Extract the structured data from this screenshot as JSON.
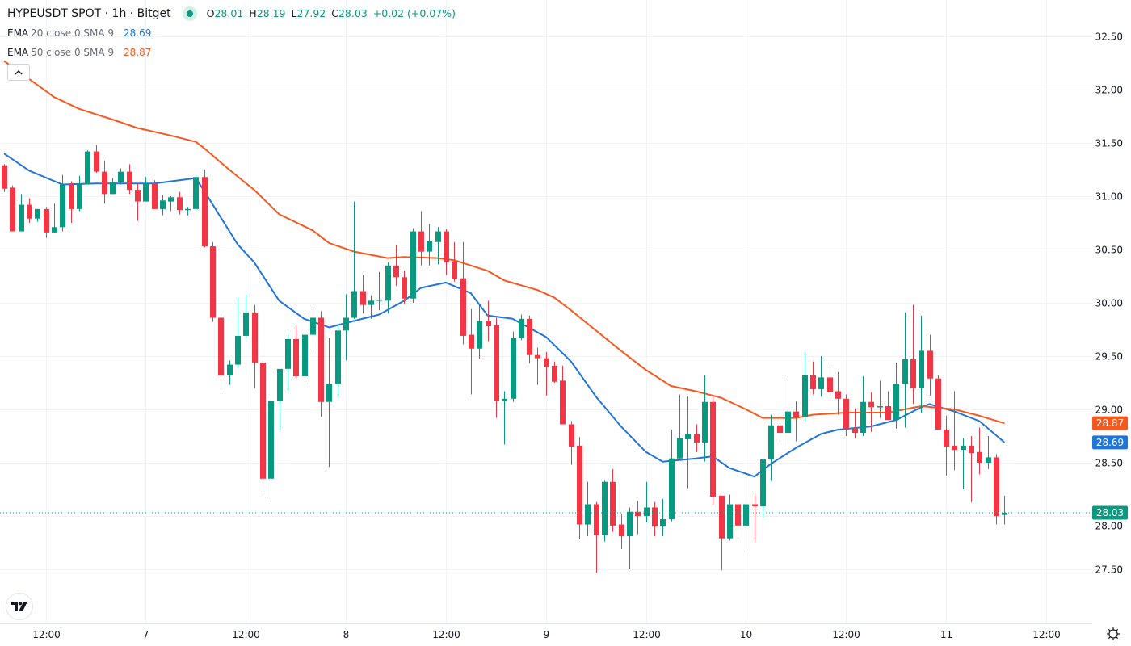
{
  "header": {
    "symbol": "HYPEUSDT SPOT · 1h · Bitget",
    "status_icon": "market-open-dot-icon",
    "open_label": "O",
    "open": "28.01",
    "high_label": "H",
    "high": "28.19",
    "low_label": "L",
    "low": "27.92",
    "close_label": "C",
    "close": "28.03",
    "change": "+0.02 (+0.07%)"
  },
  "indicators": [
    {
      "name": "EMA",
      "args": "20 close 0 SMA 9",
      "value": "28.69",
      "color": "#2175D9"
    },
    {
      "name": "EMA",
      "args": "50 close 0 SMA 9",
      "value": "28.87",
      "color": "#F7581F"
    }
  ],
  "collapse_icon": "chevron-up-icon",
  "logo_text": "TV",
  "settings_icon": "gear-icon",
  "chart_data": {
    "type": "candlestick",
    "interval": "1h",
    "colors": {
      "up": "#089981",
      "down": "#F23645",
      "grid": "#F0F3FA"
    },
    "y_range": [
      27.2,
      32.85
    ],
    "price_ticks": [
      "32.50",
      "32.00",
      "31.50",
      "31.00",
      "30.50",
      "30.00",
      "29.50",
      "29.00",
      "28.50",
      "28.00",
      "27.50"
    ],
    "time_ticks": [
      {
        "t": "6 12:00",
        "label": "12:00"
      },
      {
        "t": "7 00:00",
        "label": "7"
      },
      {
        "t": "7 12:00",
        "label": "12:00"
      },
      {
        "t": "8 00:00",
        "label": "8"
      },
      {
        "t": "8 12:00",
        "label": "12:00"
      },
      {
        "t": "9 00:00",
        "label": "9"
      },
      {
        "t": "9 12:00",
        "label": "12:00"
      },
      {
        "t": "10 00:00",
        "label": "10"
      },
      {
        "t": "10 12:00",
        "label": "12:00"
      },
      {
        "t": "11 00:00",
        "label": "11"
      },
      {
        "t": "11 12:00",
        "label": "12:00"
      }
    ],
    "last_price": "28.03",
    "candles_fields": [
      "time",
      "open",
      "high",
      "low",
      "close"
    ],
    "candles": [
      [
        "6 07:00",
        31.29,
        31.3,
        31.04,
        31.07
      ],
      [
        "6 08:00",
        31.08,
        31.1,
        30.67,
        30.67
      ],
      [
        "6 09:00",
        30.67,
        31.02,
        30.67,
        30.92
      ],
      [
        "6 10:00",
        30.92,
        30.98,
        30.75,
        30.79
      ],
      [
        "6 11:00",
        30.79,
        30.88,
        30.76,
        30.88
      ],
      [
        "6 12:00",
        30.88,
        30.9,
        30.61,
        30.66
      ],
      [
        "6 13:00",
        30.66,
        30.93,
        30.66,
        30.71
      ],
      [
        "6 14:00",
        30.71,
        31.2,
        30.67,
        31.11
      ],
      [
        "6 15:00",
        31.11,
        31.14,
        30.75,
        30.88
      ],
      [
        "6 16:00",
        30.88,
        31.19,
        30.86,
        31.11
      ],
      [
        "6 17:00",
        31.11,
        31.43,
        31.11,
        31.42
      ],
      [
        "6 18:00",
        31.42,
        31.48,
        31.22,
        31.23
      ],
      [
        "6 19:00",
        31.23,
        31.33,
        30.93,
        31.02
      ],
      [
        "6 20:00",
        31.02,
        31.17,
        31.02,
        31.13
      ],
      [
        "6 21:00",
        31.13,
        31.26,
        31.11,
        31.23
      ],
      [
        "6 22:00",
        31.23,
        31.3,
        31.02,
        31.06
      ],
      [
        "6 23:00",
        31.06,
        31.12,
        30.77,
        30.95
      ],
      [
        "7 00:00",
        30.95,
        31.18,
        30.95,
        31.12
      ],
      [
        "7 01:00",
        31.12,
        31.15,
        30.88,
        30.88
      ],
      [
        "7 02:00",
        30.88,
        31.01,
        30.82,
        30.96
      ],
      [
        "7 03:00",
        30.95,
        31.0,
        30.86,
        30.99
      ],
      [
        "7 04:00",
        30.99,
        31.04,
        30.83,
        30.87
      ],
      [
        "7 05:00",
        30.87,
        30.9,
        30.82,
        30.88
      ],
      [
        "7 06:00",
        30.88,
        31.2,
        30.87,
        31.18
      ],
      [
        "7 07:00",
        31.18,
        31.25,
        30.52,
        30.53
      ],
      [
        "7 08:00",
        30.53,
        30.57,
        29.82,
        29.86
      ],
      [
        "7 09:00",
        29.86,
        29.92,
        29.19,
        29.32
      ],
      [
        "7 10:00",
        29.32,
        29.46,
        29.23,
        29.42
      ],
      [
        "7 11:00",
        29.42,
        30.05,
        29.39,
        29.69
      ],
      [
        "7 12:00",
        29.69,
        30.08,
        29.67,
        29.91
      ],
      [
        "7 13:00",
        29.91,
        29.98,
        29.2,
        29.44
      ],
      [
        "7 14:00",
        29.44,
        29.48,
        28.23,
        28.35
      ],
      [
        "7 15:00",
        28.35,
        29.14,
        28.16,
        29.08
      ],
      [
        "7 16:00",
        29.08,
        29.38,
        28.81,
        29.38
      ],
      [
        "7 17:00",
        29.38,
        29.7,
        29.18,
        29.66
      ],
      [
        "7 18:00",
        29.66,
        29.79,
        29.29,
        29.31
      ],
      [
        "7 19:00",
        29.31,
        29.88,
        29.23,
        29.7
      ],
      [
        "7 20:00",
        29.7,
        29.94,
        29.52,
        29.86
      ],
      [
        "7 21:00",
        29.86,
        29.92,
        28.93,
        29.07
      ],
      [
        "7 22:00",
        29.07,
        29.67,
        28.46,
        29.24
      ],
      [
        "7 23:00",
        29.24,
        29.79,
        29.11,
        29.74
      ],
      [
        "8 00:00",
        29.74,
        30.08,
        29.46,
        29.86
      ],
      [
        "8 01:00",
        29.86,
        30.95,
        29.85,
        30.11
      ],
      [
        "8 02:00",
        30.11,
        30.26,
        29.9,
        29.98
      ],
      [
        "8 03:00",
        29.98,
        30.07,
        29.85,
        30.02
      ],
      [
        "8 04:00",
        30.02,
        30.29,
        29.93,
        30.03
      ],
      [
        "8 05:00",
        30.02,
        30.38,
        29.9,
        30.35
      ],
      [
        "8 06:00",
        30.35,
        30.54,
        30.16,
        30.24
      ],
      [
        "8 07:00",
        30.24,
        30.3,
        29.99,
        30.04
      ],
      [
        "8 08:00",
        30.04,
        30.7,
        30.0,
        30.67
      ],
      [
        "8 09:00",
        30.67,
        30.86,
        30.35,
        30.48
      ],
      [
        "8 10:00",
        30.48,
        30.74,
        30.35,
        30.58
      ],
      [
        "8 11:00",
        30.57,
        30.71,
        30.36,
        30.67
      ],
      [
        "8 12:00",
        30.67,
        30.69,
        30.26,
        30.38
      ],
      [
        "8 13:00",
        30.39,
        30.57,
        30.2,
        30.22
      ],
      [
        "8 14:00",
        30.23,
        30.57,
        29.61,
        29.69
      ],
      [
        "8 15:00",
        29.7,
        29.94,
        29.14,
        29.57
      ],
      [
        "8 16:00",
        29.57,
        29.99,
        29.47,
        29.83
      ],
      [
        "8 17:00",
        29.83,
        30.02,
        29.64,
        29.78
      ],
      [
        "8 18:00",
        29.79,
        29.86,
        28.92,
        29.08
      ],
      [
        "8 19:00",
        29.08,
        29.17,
        28.67,
        29.1
      ],
      [
        "8 20:00",
        29.1,
        29.73,
        29.07,
        29.67
      ],
      [
        "8 21:00",
        29.67,
        29.89,
        29.65,
        29.85
      ],
      [
        "8 22:00",
        29.85,
        29.88,
        29.43,
        29.51
      ],
      [
        "8 23:00",
        29.51,
        29.58,
        29.23,
        29.48
      ],
      [
        "9 00:00",
        29.48,
        29.54,
        29.13,
        29.4
      ],
      [
        "9 01:00",
        29.41,
        29.45,
        29.25,
        29.26
      ],
      [
        "9 02:00",
        29.27,
        29.41,
        28.86,
        28.86
      ],
      [
        "9 03:00",
        28.86,
        28.89,
        28.48,
        28.65
      ],
      [
        "9 04:00",
        28.66,
        28.74,
        27.78,
        27.92
      ],
      [
        "9 05:00",
        27.92,
        28.32,
        27.81,
        28.11
      ],
      [
        "9 06:00",
        28.11,
        28.13,
        27.47,
        27.82
      ],
      [
        "9 07:00",
        27.82,
        28.33,
        27.76,
        28.32
      ],
      [
        "9 08:00",
        28.32,
        28.44,
        27.85,
        27.91
      ],
      [
        "9 09:00",
        27.92,
        28.02,
        27.69,
        27.81
      ],
      [
        "9 10:00",
        27.81,
        28.08,
        27.5,
        28.04
      ],
      [
        "9 11:00",
        28.04,
        28.14,
        27.83,
        28.0
      ],
      [
        "9 12:00",
        28.0,
        28.32,
        27.94,
        28.08
      ],
      [
        "9 13:00",
        28.08,
        28.13,
        27.81,
        27.9
      ],
      [
        "9 14:00",
        27.9,
        28.16,
        27.81,
        27.97
      ],
      [
        "9 15:00",
        27.97,
        28.81,
        27.95,
        28.54
      ],
      [
        "9 16:00",
        28.54,
        29.14,
        28.52,
        28.73
      ],
      [
        "9 17:00",
        28.72,
        29.12,
        28.26,
        28.77
      ],
      [
        "9 18:00",
        28.77,
        28.86,
        28.6,
        28.69
      ],
      [
        "9 19:00",
        28.69,
        29.32,
        28.51,
        29.07
      ],
      [
        "9 20:00",
        29.07,
        29.13,
        28.11,
        28.18
      ],
      [
        "9 21:00",
        28.19,
        28.19,
        27.49,
        27.79
      ],
      [
        "9 22:00",
        27.79,
        28.2,
        27.77,
        28.11
      ],
      [
        "9 23:00",
        28.11,
        28.11,
        27.76,
        27.91
      ],
      [
        "10 00:00",
        27.91,
        28.38,
        27.64,
        28.11
      ],
      [
        "10 01:00",
        28.11,
        28.21,
        27.76,
        28.09
      ],
      [
        "10 02:00",
        28.09,
        28.54,
        27.99,
        28.53
      ],
      [
        "10 03:00",
        28.53,
        28.95,
        28.33,
        28.85
      ],
      [
        "10 04:00",
        28.85,
        28.91,
        28.67,
        28.78
      ],
      [
        "10 05:00",
        28.78,
        29.31,
        28.66,
        28.98
      ],
      [
        "10 06:00",
        28.98,
        29.08,
        28.7,
        28.93
      ],
      [
        "10 07:00",
        28.93,
        29.54,
        28.89,
        29.32
      ],
      [
        "10 08:00",
        29.32,
        29.45,
        29.14,
        29.19
      ],
      [
        "10 09:00",
        29.19,
        29.5,
        29.12,
        29.3
      ],
      [
        "10 10:00",
        29.3,
        29.42,
        29.13,
        29.16
      ],
      [
        "10 11:00",
        29.17,
        29.35,
        28.95,
        29.1
      ],
      [
        "10 12:00",
        29.1,
        29.14,
        28.75,
        28.82
      ],
      [
        "10 13:00",
        28.82,
        29.01,
        28.73,
        28.78
      ],
      [
        "10 14:00",
        28.78,
        29.31,
        28.75,
        29.07
      ],
      [
        "10 15:00",
        29.07,
        29.16,
        28.79,
        29.02
      ],
      [
        "10 16:00",
        29.02,
        29.27,
        28.92,
        29.03
      ],
      [
        "10 17:00",
        29.03,
        29.17,
        28.9,
        28.9
      ],
      [
        "10 18:00",
        28.9,
        29.44,
        28.82,
        29.24
      ],
      [
        "10 19:00",
        29.24,
        29.91,
        28.83,
        29.47
      ],
      [
        "10 20:00",
        29.47,
        29.98,
        29.05,
        29.2
      ],
      [
        "10 21:00",
        29.2,
        29.88,
        28.97,
        29.55
      ],
      [
        "10 22:00",
        29.55,
        29.7,
        29.13,
        29.29
      ],
      [
        "10 23:00",
        29.29,
        29.32,
        28.81,
        28.81
      ],
      [
        "11 00:00",
        28.81,
        28.94,
        28.38,
        28.65
      ],
      [
        "11 01:00",
        28.66,
        29.17,
        28.43,
        28.62
      ],
      [
        "11 02:00",
        28.62,
        28.73,
        28.25,
        28.66
      ],
      [
        "11 03:00",
        28.66,
        28.75,
        28.13,
        28.59
      ],
      [
        "11 04:00",
        28.6,
        28.83,
        28.39,
        28.5
      ],
      [
        "11 05:00",
        28.5,
        28.75,
        28.44,
        28.55
      ],
      [
        "11 06:00",
        28.55,
        28.58,
        27.92,
        28.0
      ],
      [
        "11 07:00",
        28.01,
        28.19,
        27.92,
        28.03
      ]
    ],
    "series": [
      {
        "name": "EMA 20",
        "color": "#2175D9",
        "points": [
          [
            "6 07:00",
            31.4
          ],
          [
            "6 10:00",
            31.24
          ],
          [
            "6 14:00",
            31.11
          ],
          [
            "6 18:00",
            31.12
          ],
          [
            "7 01:00",
            31.12
          ],
          [
            "7 06:00",
            31.17
          ],
          [
            "7 07:00",
            31.05
          ],
          [
            "7 11:00",
            30.55
          ],
          [
            "7 13:00",
            30.38
          ],
          [
            "7 16:00",
            30.02
          ],
          [
            "7 19:00",
            29.85
          ],
          [
            "7 22:00",
            29.77
          ],
          [
            "8 01:00",
            29.83
          ],
          [
            "8 04:00",
            29.89
          ],
          [
            "8 07:00",
            30.02
          ],
          [
            "8 09:00",
            30.14
          ],
          [
            "8 12:00",
            30.19
          ],
          [
            "8 15:00",
            30.09
          ],
          [
            "8 17:00",
            29.88
          ],
          [
            "8 20:00",
            29.85
          ],
          [
            "9 00:00",
            29.68
          ],
          [
            "9 03:00",
            29.45
          ],
          [
            "9 06:00",
            29.12
          ],
          [
            "9 09:00",
            28.84
          ],
          [
            "9 12:00",
            28.6
          ],
          [
            "9 14:00",
            28.51
          ],
          [
            "9 18:00",
            28.54
          ],
          [
            "9 20:00",
            28.56
          ],
          [
            "9 22:00",
            28.45
          ],
          [
            "10 01:00",
            28.37
          ],
          [
            "10 03:00",
            28.49
          ],
          [
            "10 06:00",
            28.64
          ],
          [
            "10 09:00",
            28.77
          ],
          [
            "10 11:00",
            28.81
          ],
          [
            "10 15:00",
            28.84
          ],
          [
            "10 18:00",
            28.9
          ],
          [
            "10 21:00",
            29.02
          ],
          [
            "10 22:00",
            29.05
          ],
          [
            "11 01:00",
            28.98
          ],
          [
            "11 04:00",
            28.89
          ],
          [
            "11 07:00",
            28.69
          ]
        ]
      },
      {
        "name": "EMA 50",
        "color": "#F7581F",
        "points": [
          [
            "6 07:00",
            32.27
          ],
          [
            "6 10:00",
            32.1
          ],
          [
            "6 13:00",
            31.93
          ],
          [
            "6 16:00",
            31.82
          ],
          [
            "6 20:00",
            31.72
          ],
          [
            "6 23:00",
            31.64
          ],
          [
            "7 03:00",
            31.57
          ],
          [
            "7 06:00",
            31.51
          ],
          [
            "7 07:00",
            31.45
          ],
          [
            "7 10:00",
            31.25
          ],
          [
            "7 13:00",
            31.06
          ],
          [
            "7 16:00",
            30.83
          ],
          [
            "7 20:00",
            30.68
          ],
          [
            "7 22:00",
            30.56
          ],
          [
            "8 01:00",
            30.48
          ],
          [
            "8 05:00",
            30.42
          ],
          [
            "8 07:00",
            30.43
          ],
          [
            "8 11:00",
            30.42
          ],
          [
            "8 13:00",
            30.4
          ],
          [
            "8 17:00",
            30.3
          ],
          [
            "8 19:00",
            30.21
          ],
          [
            "8 23:00",
            30.12
          ],
          [
            "9 01:00",
            30.05
          ],
          [
            "9 03:00",
            29.93
          ],
          [
            "9 06:00",
            29.74
          ],
          [
            "9 09:00",
            29.55
          ],
          [
            "9 12:00",
            29.37
          ],
          [
            "9 15:00",
            29.22
          ],
          [
            "9 18:00",
            29.17
          ],
          [
            "9 21:00",
            29.11
          ],
          [
            "10 00:00",
            29.0
          ],
          [
            "10 02:00",
            28.92
          ],
          [
            "10 06:00",
            28.92
          ],
          [
            "10 08:00",
            28.95
          ],
          [
            "10 12:00",
            28.97
          ],
          [
            "10 17:00",
            28.97
          ],
          [
            "10 21:00",
            29.03
          ],
          [
            "11 01:00",
            29.0
          ],
          [
            "11 04:00",
            28.94
          ],
          [
            "11 07:00",
            28.87
          ]
        ]
      }
    ]
  }
}
